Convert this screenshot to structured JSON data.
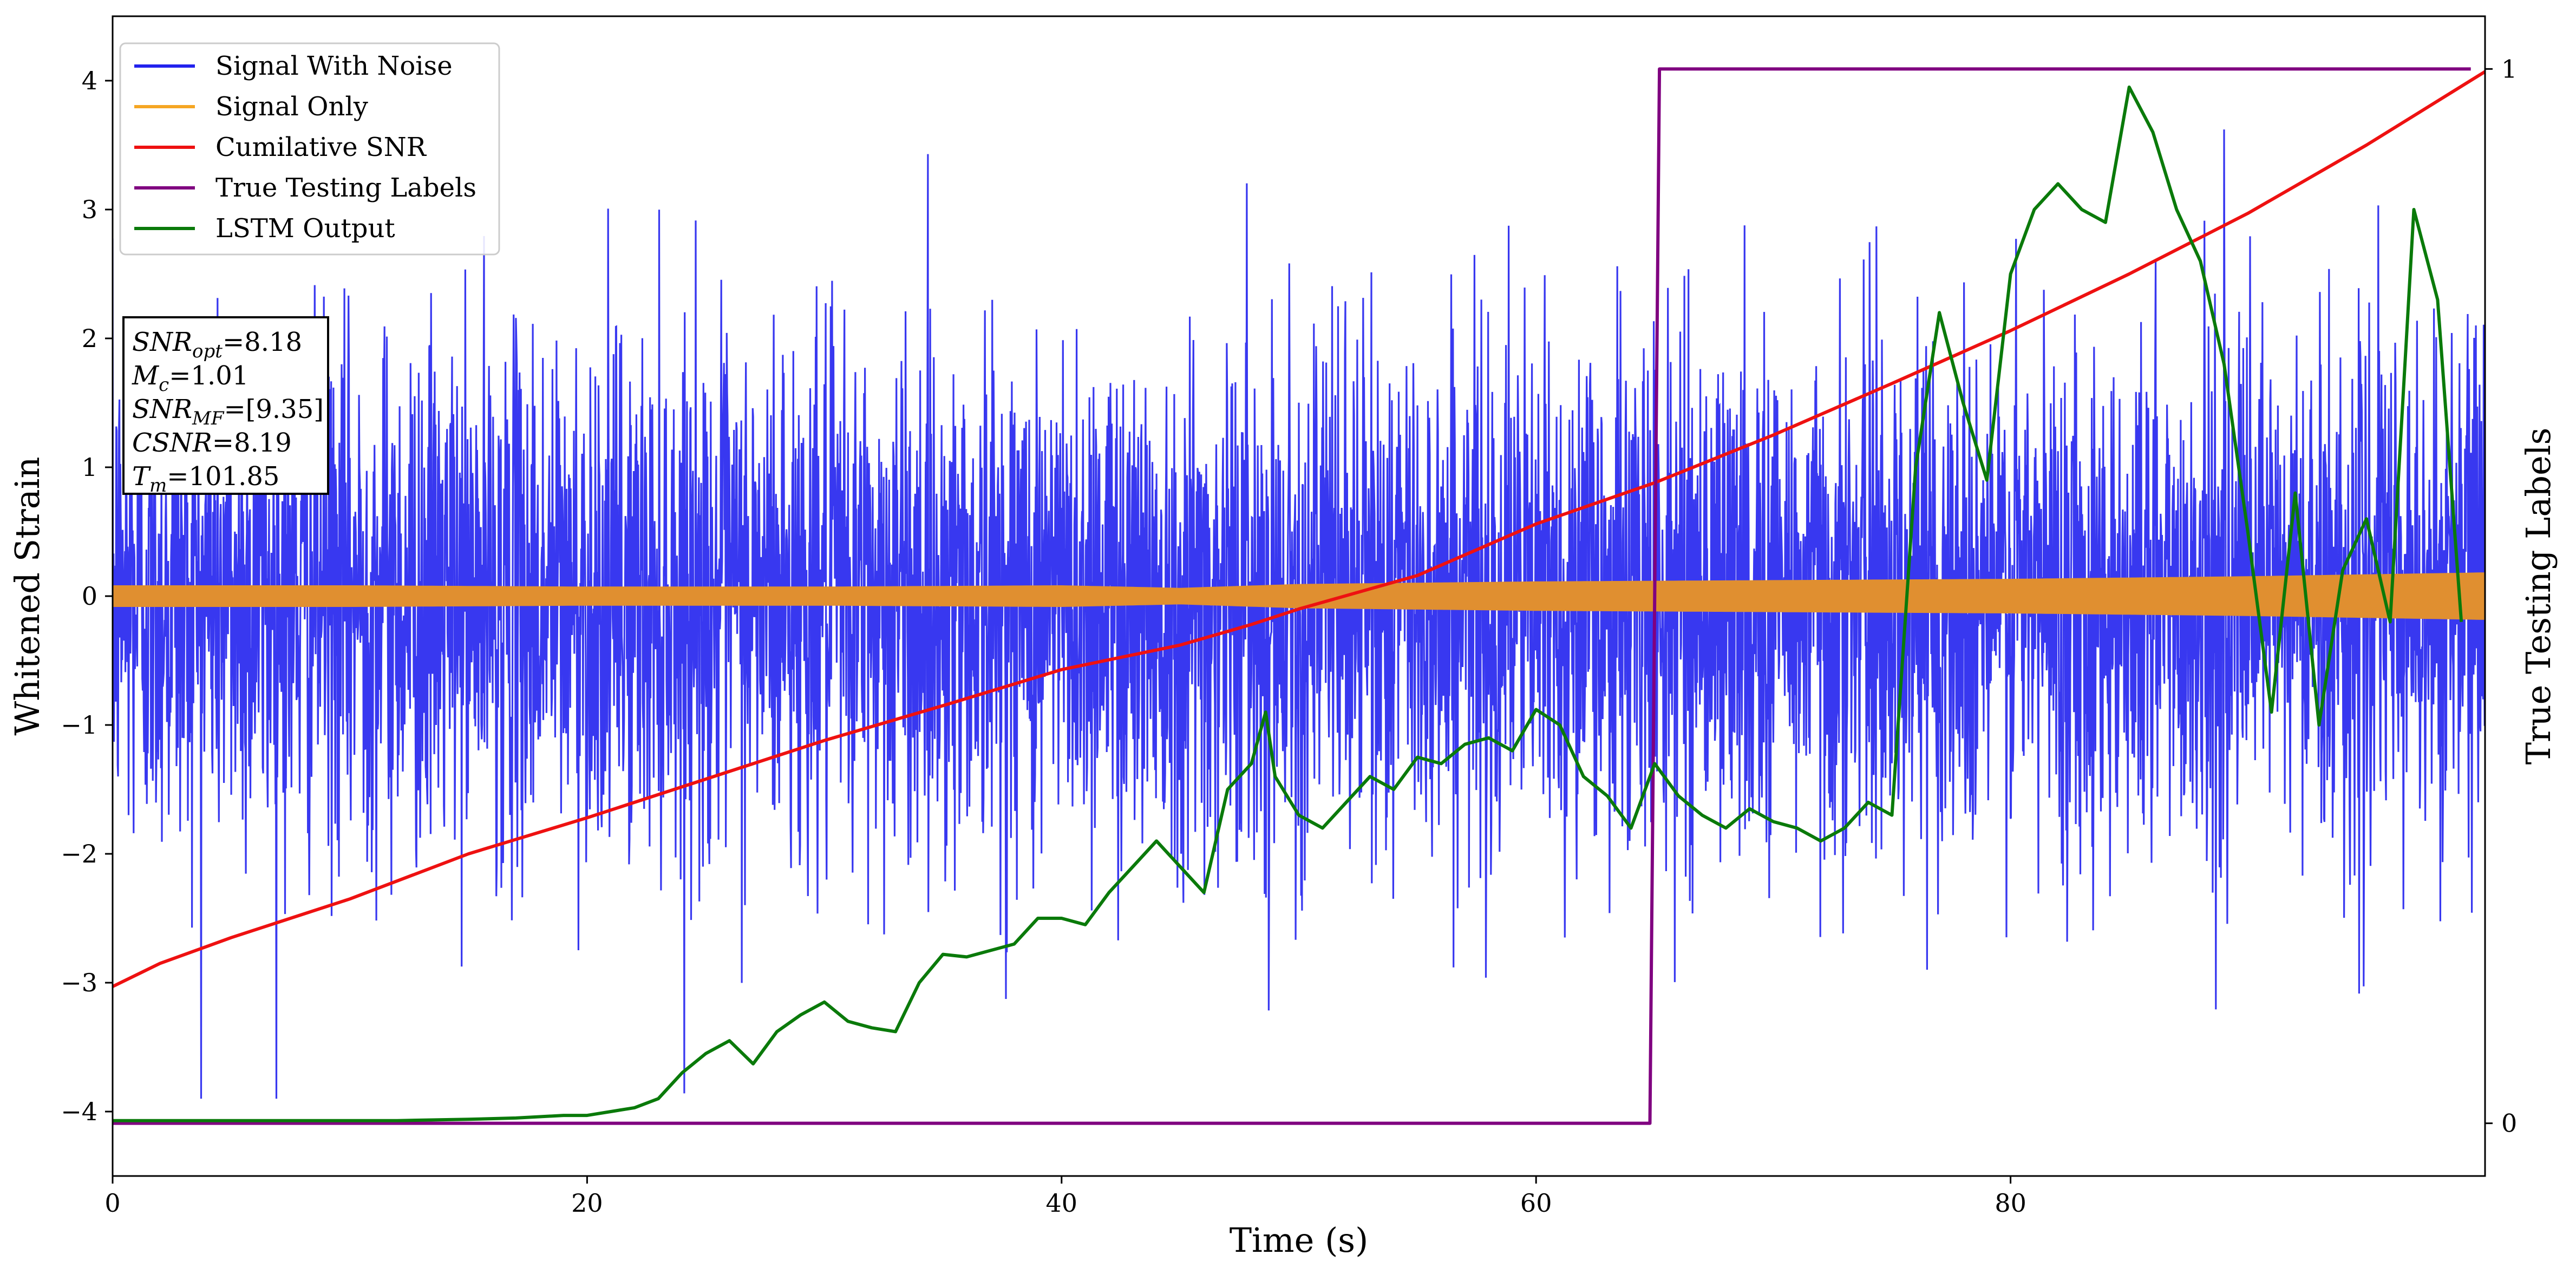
{
  "chart_data": {
    "type": "line",
    "xlabel": "Time (s)",
    "ylabel": "Whitened Strain",
    "y2label": "True Testing Labels",
    "xlim": [
      0,
      100
    ],
    "ylim": [
      -4.5,
      4.5
    ],
    "y2lim": [
      -0.05,
      1.05
    ],
    "xticks": [
      "0",
      "20",
      "40",
      "60",
      "80"
    ],
    "xtick_values": [
      0,
      20,
      40,
      60,
      80
    ],
    "yticks": [
      "−4",
      "−3",
      "−2",
      "−1",
      "0",
      "1",
      "2",
      "3",
      "4"
    ],
    "ytick_values": [
      -4,
      -3,
      -2,
      -1,
      0,
      1,
      2,
      3,
      4
    ],
    "y2ticks": [
      "0",
      "1"
    ],
    "y2tick_values": [
      0,
      1
    ],
    "grid": false,
    "legend_placement": "top-left",
    "legend": [
      {
        "label": "Signal With Noise",
        "color": "#2222ee"
      },
      {
        "label": "Signal Only",
        "color": "#f5a623"
      },
      {
        "label": "Cumilative SNR",
        "color": "#ee1111"
      },
      {
        "label": "True Testing Labels",
        "color": "#800080"
      },
      {
        "label": "LSTM Output",
        "color": "#0a7a0a"
      }
    ],
    "annotation": {
      "snr_opt": {
        "base": "SNR",
        "sub": "opt",
        "value": "=8.18"
      },
      "mc": {
        "base": "M",
        "sub": "c",
        "value": "=1.01"
      },
      "snr_mf": {
        "base": "SNR",
        "sub": "MF",
        "value": "=[9.35]"
      },
      "csnr": {
        "base": "CSNR",
        "sub": "",
        "value": "=8.19"
      },
      "tm": {
        "base": "T",
        "sub": "m",
        "value": "=101.85"
      }
    },
    "series": [
      {
        "name": "Signal With Noise",
        "axis": "left",
        "color": "#2222ee",
        "noise_sigma": 1.0,
        "envelope_max": 4.1,
        "envelope_min": -3.9
      },
      {
        "name": "Signal Only",
        "axis": "left",
        "color": "#e08f30",
        "amplitude": [
          [
            0,
            0.08
          ],
          [
            10,
            0.08
          ],
          [
            20,
            0.07
          ],
          [
            30,
            0.07
          ],
          [
            40,
            0.08
          ],
          [
            45,
            0.06
          ],
          [
            50,
            0.09
          ],
          [
            60,
            0.11
          ],
          [
            70,
            0.12
          ],
          [
            80,
            0.13
          ],
          [
            90,
            0.15
          ],
          [
            100,
            0.18
          ]
        ]
      },
      {
        "name": "Cumilative SNR",
        "axis": "left",
        "color": "#ee1111",
        "points": [
          [
            0,
            -3.03
          ],
          [
            2,
            -2.85
          ],
          [
            5,
            -2.65
          ],
          [
            10,
            -2.35
          ],
          [
            15,
            -2.0
          ],
          [
            20,
            -1.72
          ],
          [
            25,
            -1.42
          ],
          [
            30,
            -1.12
          ],
          [
            35,
            -0.85
          ],
          [
            40,
            -0.57
          ],
          [
            45,
            -0.38
          ],
          [
            48,
            -0.22
          ],
          [
            50,
            -0.1
          ],
          [
            55,
            0.16
          ],
          [
            60,
            0.56
          ],
          [
            65,
            0.88
          ],
          [
            70,
            1.25
          ],
          [
            75,
            1.65
          ],
          [
            80,
            2.06
          ],
          [
            85,
            2.5
          ],
          [
            90,
            2.97
          ],
          [
            95,
            3.5
          ],
          [
            100,
            4.07
          ]
        ]
      },
      {
        "name": "True Testing Labels",
        "axis": "right",
        "color": "#800080",
        "points": [
          [
            0,
            0
          ],
          [
            64.8,
            0
          ],
          [
            65.0,
            0.5
          ],
          [
            65.2,
            1
          ],
          [
            99.4,
            1
          ]
        ]
      },
      {
        "name": "LSTM Output",
        "axis": "left",
        "color": "#0a7a0a",
        "points": [
          [
            0,
            -4.07
          ],
          [
            12,
            -4.07
          ],
          [
            15,
            -4.06
          ],
          [
            17,
            -4.05
          ],
          [
            19,
            -4.03
          ],
          [
            20,
            -4.03
          ],
          [
            21,
            -4.0
          ],
          [
            22,
            -3.97
          ],
          [
            23,
            -3.9
          ],
          [
            24,
            -3.7
          ],
          [
            25,
            -3.55
          ],
          [
            26,
            -3.45
          ],
          [
            27,
            -3.63
          ],
          [
            28,
            -3.38
          ],
          [
            29,
            -3.25
          ],
          [
            30,
            -3.15
          ],
          [
            31,
            -3.3
          ],
          [
            32,
            -3.35
          ],
          [
            33,
            -3.38
          ],
          [
            34,
            -3.0
          ],
          [
            35,
            -2.78
          ],
          [
            36,
            -2.8
          ],
          [
            37,
            -2.75
          ],
          [
            38,
            -2.7
          ],
          [
            39,
            -2.5
          ],
          [
            40,
            -2.5
          ],
          [
            41,
            -2.55
          ],
          [
            42,
            -2.3
          ],
          [
            43,
            -2.1
          ],
          [
            44,
            -1.9
          ],
          [
            45,
            -2.1
          ],
          [
            46,
            -2.3
          ],
          [
            47,
            -1.5
          ],
          [
            48,
            -1.3
          ],
          [
            48.6,
            -0.9
          ],
          [
            49,
            -1.4
          ],
          [
            50,
            -1.7
          ],
          [
            51,
            -1.8
          ],
          [
            52,
            -1.6
          ],
          [
            53,
            -1.4
          ],
          [
            54,
            -1.5
          ],
          [
            55,
            -1.25
          ],
          [
            56,
            -1.3
          ],
          [
            57,
            -1.15
          ],
          [
            58,
            -1.1
          ],
          [
            59,
            -1.2
          ],
          [
            60,
            -0.88
          ],
          [
            61,
            -1.0
          ],
          [
            62,
            -1.4
          ],
          [
            63,
            -1.55
          ],
          [
            64,
            -1.8
          ],
          [
            65,
            -1.3
          ],
          [
            66,
            -1.55
          ],
          [
            67,
            -1.7
          ],
          [
            68,
            -1.8
          ],
          [
            69,
            -1.65
          ],
          [
            70,
            -1.75
          ],
          [
            71,
            -1.8
          ],
          [
            72,
            -1.9
          ],
          [
            73,
            -1.8
          ],
          [
            74,
            -1.6
          ],
          [
            75,
            -1.7
          ],
          [
            76,
            1.0
          ],
          [
            77,
            2.2
          ],
          [
            78,
            1.5
          ],
          [
            79,
            0.9
          ],
          [
            80,
            2.5
          ],
          [
            81,
            3.0
          ],
          [
            82,
            3.2
          ],
          [
            83,
            3.0
          ],
          [
            84,
            2.9
          ],
          [
            85,
            3.95
          ],
          [
            86,
            3.6
          ],
          [
            87,
            3.0
          ],
          [
            88,
            2.6
          ],
          [
            89,
            1.8
          ],
          [
            90,
            0.5
          ],
          [
            91,
            -0.9
          ],
          [
            92,
            0.8
          ],
          [
            93,
            -1.0
          ],
          [
            94,
            0.2
          ],
          [
            95,
            0.6
          ],
          [
            96,
            -0.2
          ],
          [
            97,
            3.0
          ],
          [
            98,
            2.3
          ],
          [
            99,
            -0.2
          ]
        ]
      }
    ]
  }
}
